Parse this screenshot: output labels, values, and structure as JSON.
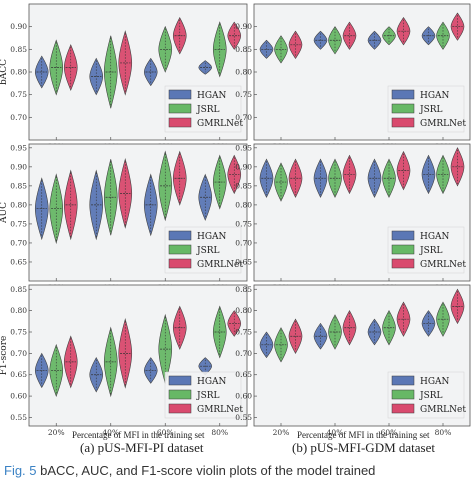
{
  "figure": {
    "caption_prefix": "Fig. 5",
    "caption_text": "bACC, AUC, and F1-score violin plots of the model trained",
    "sub_titles": [
      "(a) pUS-MFI-PI dataset",
      "(b) pUS-MFI-GDM dataset"
    ],
    "x_axis_label": "Percentage of MFI in the training set"
  },
  "colors": {
    "HGAN": "#5b77b5",
    "JSRL": "#67b866",
    "GMRLNet": "#d94a6e",
    "median_line": "#333333"
  },
  "chart_data": [
    {
      "type": "violin",
      "panel": "a-bacc",
      "dataset": "pUS-MFI-PI",
      "ylabel": "bACC",
      "ylim": [
        0.65,
        0.95
      ],
      "yticks": [
        0.7,
        0.75,
        0.8,
        0.85,
        0.9
      ],
      "categories": [
        "20%",
        "40%",
        "60%",
        "80%"
      ],
      "legend": "lower-right",
      "grid": false,
      "series": [
        {
          "name": "HGAN",
          "values": [
            0.8,
            0.79,
            0.8,
            0.81
          ],
          "spread": [
            0.035,
            0.04,
            0.03,
            0.015
          ]
        },
        {
          "name": "JSRL",
          "values": [
            0.81,
            0.8,
            0.85,
            0.85
          ],
          "spread": [
            0.06,
            0.08,
            0.05,
            0.06
          ]
        },
        {
          "name": "GMRLNet",
          "values": [
            0.81,
            0.82,
            0.88,
            0.88
          ],
          "spread": [
            0.05,
            0.07,
            0.04,
            0.03
          ]
        }
      ]
    },
    {
      "type": "violin",
      "panel": "b-bacc",
      "dataset": "pUS-MFI-GDM",
      "ylabel": "",
      "ylim": [
        0.65,
        0.95
      ],
      "yticks": [
        0.7,
        0.75,
        0.8,
        0.85,
        0.9
      ],
      "categories": [
        "20%",
        "40%",
        "60%",
        "80%"
      ],
      "legend": "lower-right",
      "grid": false,
      "series": [
        {
          "name": "HGAN",
          "values": [
            0.85,
            0.87,
            0.87,
            0.88
          ],
          "spread": [
            0.02,
            0.02,
            0.02,
            0.02
          ]
        },
        {
          "name": "JSRL",
          "values": [
            0.85,
            0.87,
            0.88,
            0.88
          ],
          "spread": [
            0.03,
            0.03,
            0.02,
            0.03
          ]
        },
        {
          "name": "GMRLNet",
          "values": [
            0.86,
            0.88,
            0.89,
            0.9
          ],
          "spread": [
            0.03,
            0.03,
            0.03,
            0.03
          ]
        }
      ]
    },
    {
      "type": "violin",
      "panel": "a-auc",
      "dataset": "pUS-MFI-PI",
      "ylabel": "AUC",
      "ylim": [
        0.6,
        0.96
      ],
      "yticks": [
        0.65,
        0.7,
        0.75,
        0.8,
        0.85,
        0.9,
        0.95
      ],
      "categories": [
        "20%",
        "40%",
        "60%",
        "80%"
      ],
      "legend": "lower-right",
      "grid": false,
      "series": [
        {
          "name": "HGAN",
          "values": [
            0.79,
            0.8,
            0.8,
            0.82
          ],
          "spread": [
            0.08,
            0.09,
            0.08,
            0.06
          ]
        },
        {
          "name": "JSRL",
          "values": [
            0.79,
            0.82,
            0.85,
            0.86
          ],
          "spread": [
            0.09,
            0.1,
            0.09,
            0.07
          ]
        },
        {
          "name": "GMRLNet",
          "values": [
            0.8,
            0.83,
            0.87,
            0.88
          ],
          "spread": [
            0.09,
            0.09,
            0.07,
            0.05
          ]
        }
      ]
    },
    {
      "type": "violin",
      "panel": "b-auc",
      "dataset": "pUS-MFI-GDM",
      "ylabel": "",
      "ylim": [
        0.6,
        0.96
      ],
      "yticks": [
        0.65,
        0.7,
        0.75,
        0.8,
        0.85,
        0.9,
        0.95
      ],
      "categories": [
        "20%",
        "40%",
        "60%",
        "80%"
      ],
      "legend": "lower-right",
      "grid": false,
      "series": [
        {
          "name": "HGAN",
          "values": [
            0.87,
            0.87,
            0.87,
            0.88
          ],
          "spread": [
            0.05,
            0.05,
            0.05,
            0.05
          ]
        },
        {
          "name": "JSRL",
          "values": [
            0.86,
            0.87,
            0.87,
            0.88
          ],
          "spread": [
            0.05,
            0.05,
            0.05,
            0.05
          ]
        },
        {
          "name": "GMRLNet",
          "values": [
            0.87,
            0.88,
            0.89,
            0.9
          ],
          "spread": [
            0.05,
            0.05,
            0.05,
            0.05
          ]
        }
      ]
    },
    {
      "type": "violin",
      "panel": "a-f1",
      "dataset": "pUS-MFI-PI",
      "ylabel": "F1-score",
      "ylim": [
        0.53,
        0.86
      ],
      "yticks": [
        0.55,
        0.6,
        0.65,
        0.7,
        0.75,
        0.8,
        0.85
      ],
      "categories": [
        "20%",
        "40%",
        "60%",
        "80%"
      ],
      "legend": "lower-right",
      "grid": false,
      "series": [
        {
          "name": "HGAN",
          "values": [
            0.66,
            0.65,
            0.66,
            0.67
          ],
          "spread": [
            0.04,
            0.04,
            0.03,
            0.02
          ]
        },
        {
          "name": "JSRL",
          "values": [
            0.66,
            0.68,
            0.71,
            0.75
          ],
          "spread": [
            0.06,
            0.08,
            0.08,
            0.06
          ]
        },
        {
          "name": "GMRLNet",
          "values": [
            0.68,
            0.7,
            0.76,
            0.77
          ],
          "spread": [
            0.06,
            0.08,
            0.05,
            0.03
          ]
        }
      ]
    },
    {
      "type": "violin",
      "panel": "b-f1",
      "dataset": "pUS-MFI-GDM",
      "ylabel": "",
      "ylim": [
        0.53,
        0.86
      ],
      "yticks": [
        0.55,
        0.6,
        0.65,
        0.7,
        0.75,
        0.8,
        0.85
      ],
      "categories": [
        "20%",
        "40%",
        "60%",
        "80%"
      ],
      "legend": "lower-right",
      "grid": false,
      "series": [
        {
          "name": "HGAN",
          "values": [
            0.72,
            0.74,
            0.75,
            0.77
          ],
          "spread": [
            0.03,
            0.03,
            0.03,
            0.03
          ]
        },
        {
          "name": "JSRL",
          "values": [
            0.72,
            0.75,
            0.76,
            0.78
          ],
          "spread": [
            0.04,
            0.04,
            0.04,
            0.04
          ]
        },
        {
          "name": "GMRLNet",
          "values": [
            0.74,
            0.76,
            0.78,
            0.81
          ],
          "spread": [
            0.04,
            0.04,
            0.04,
            0.04
          ]
        }
      ]
    }
  ]
}
